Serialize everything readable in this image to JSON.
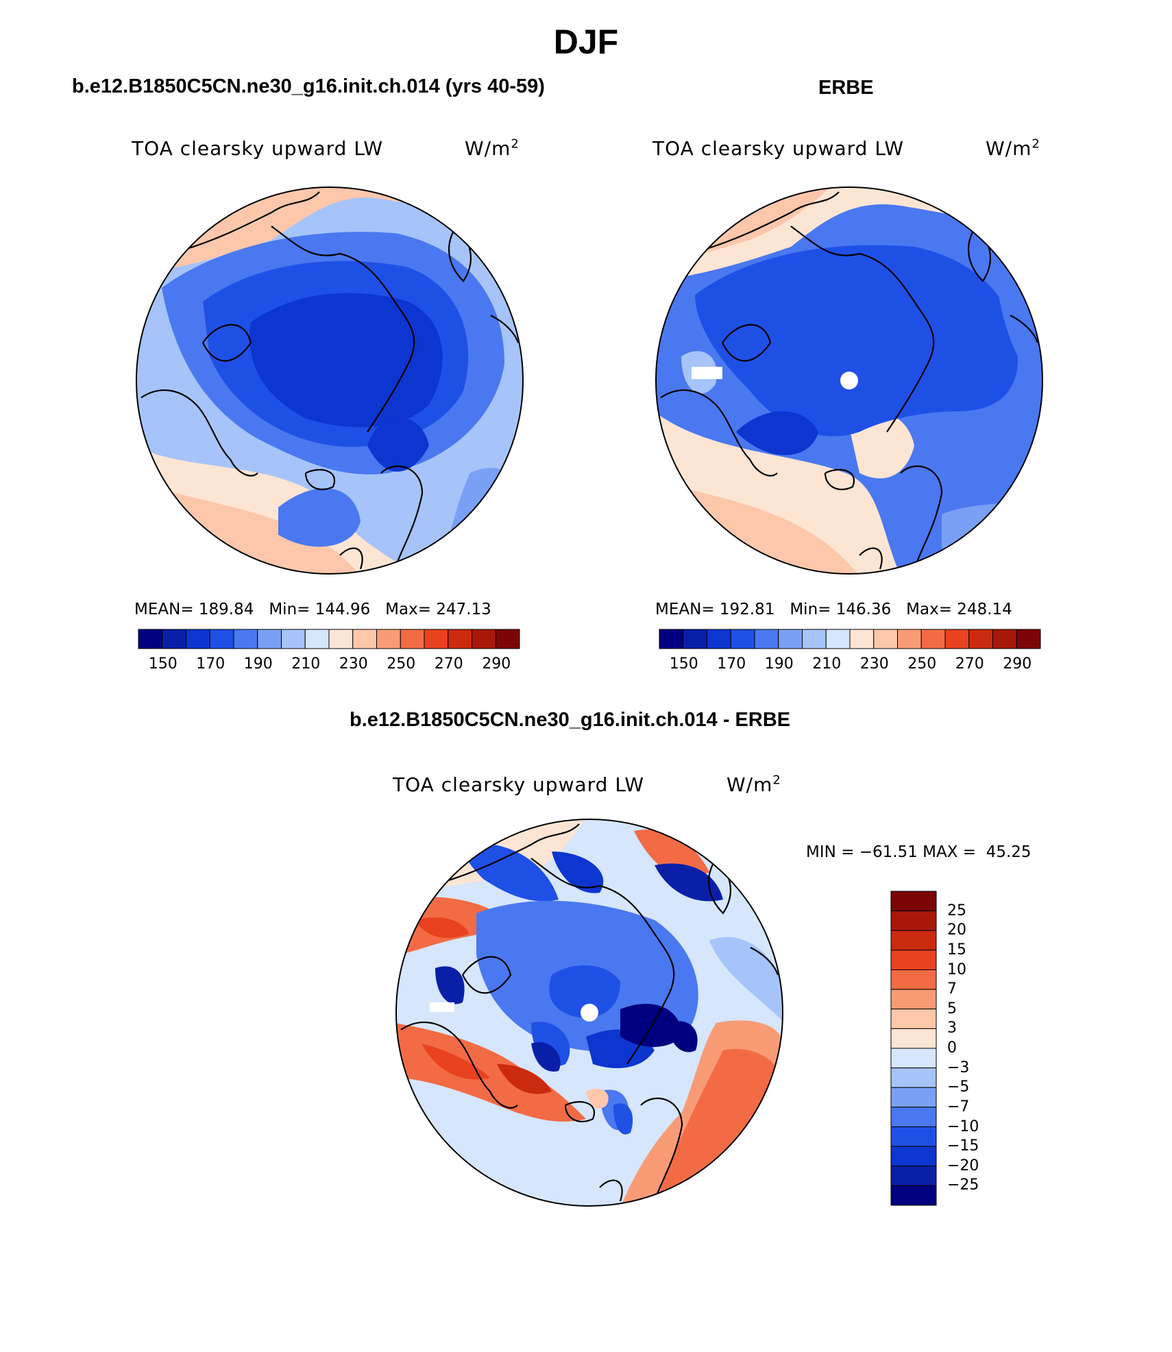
{
  "page_title": "DJF",
  "panels": [
    {
      "title": "b.e12.B1850C5CN.ne30_g16.init.ch.014 (yrs 40-59)",
      "variable": "TOA clearsky upward LW",
      "units_base": "W/m",
      "units_sup": "2",
      "stats": {
        "mean_label": "MEAN=",
        "mean": "189.84",
        "min_label": "Min=",
        "min": "144.96",
        "max_label": "Max=",
        "max": "247.13"
      },
      "pole_marker": false
    },
    {
      "title": "ERBE",
      "variable": "TOA clearsky upward LW",
      "units_base": "W/m",
      "units_sup": "2",
      "stats": {
        "mean_label": "MEAN=",
        "mean": "192.81",
        "min_label": "Min=",
        "min": "146.36",
        "max_label": "Max=",
        "max": "248.14"
      },
      "pole_marker": true
    },
    {
      "title": "b.e12.B1850C5CN.ne30_g16.init.ch.014 - ERBE",
      "variable": "TOA clearsky upward LW",
      "units_base": "W/m",
      "units_sup": "2",
      "minmax": "MIN = −61.51 MAX =  45.25",
      "pole_marker": true
    }
  ],
  "colorbar_abs": {
    "labels": [
      "150",
      "170",
      "190",
      "210",
      "230",
      "250",
      "270",
      "290"
    ],
    "colors": [
      "#000080",
      "#0a1fa8",
      "#0d35cf",
      "#1f50e6",
      "#4a78f0",
      "#7aa0f5",
      "#a6c4fa",
      "#d6e6fd",
      "#fde5d4",
      "#fcc7ab",
      "#f99c76",
      "#f26b45",
      "#e8421f",
      "#cc2a0e",
      "#a81808",
      "#7c0505"
    ]
  },
  "colorbar_diff": {
    "labels": [
      "25",
      "20",
      "15",
      "10",
      "7",
      "5",
      "3",
      "0",
      "−3",
      "−5",
      "−7",
      "−10",
      "−15",
      "−20",
      "−25"
    ],
    "colors": [
      "#7c0505",
      "#a81808",
      "#cc2a0e",
      "#e8421f",
      "#f26b45",
      "#f99c76",
      "#fcc7ab",
      "#fde5d4",
      "#d6e6fd",
      "#a6c4fa",
      "#7aa0f5",
      "#4a78f0",
      "#1f50e6",
      "#0d35cf",
      "#0a1fa8",
      "#000080"
    ]
  }
}
